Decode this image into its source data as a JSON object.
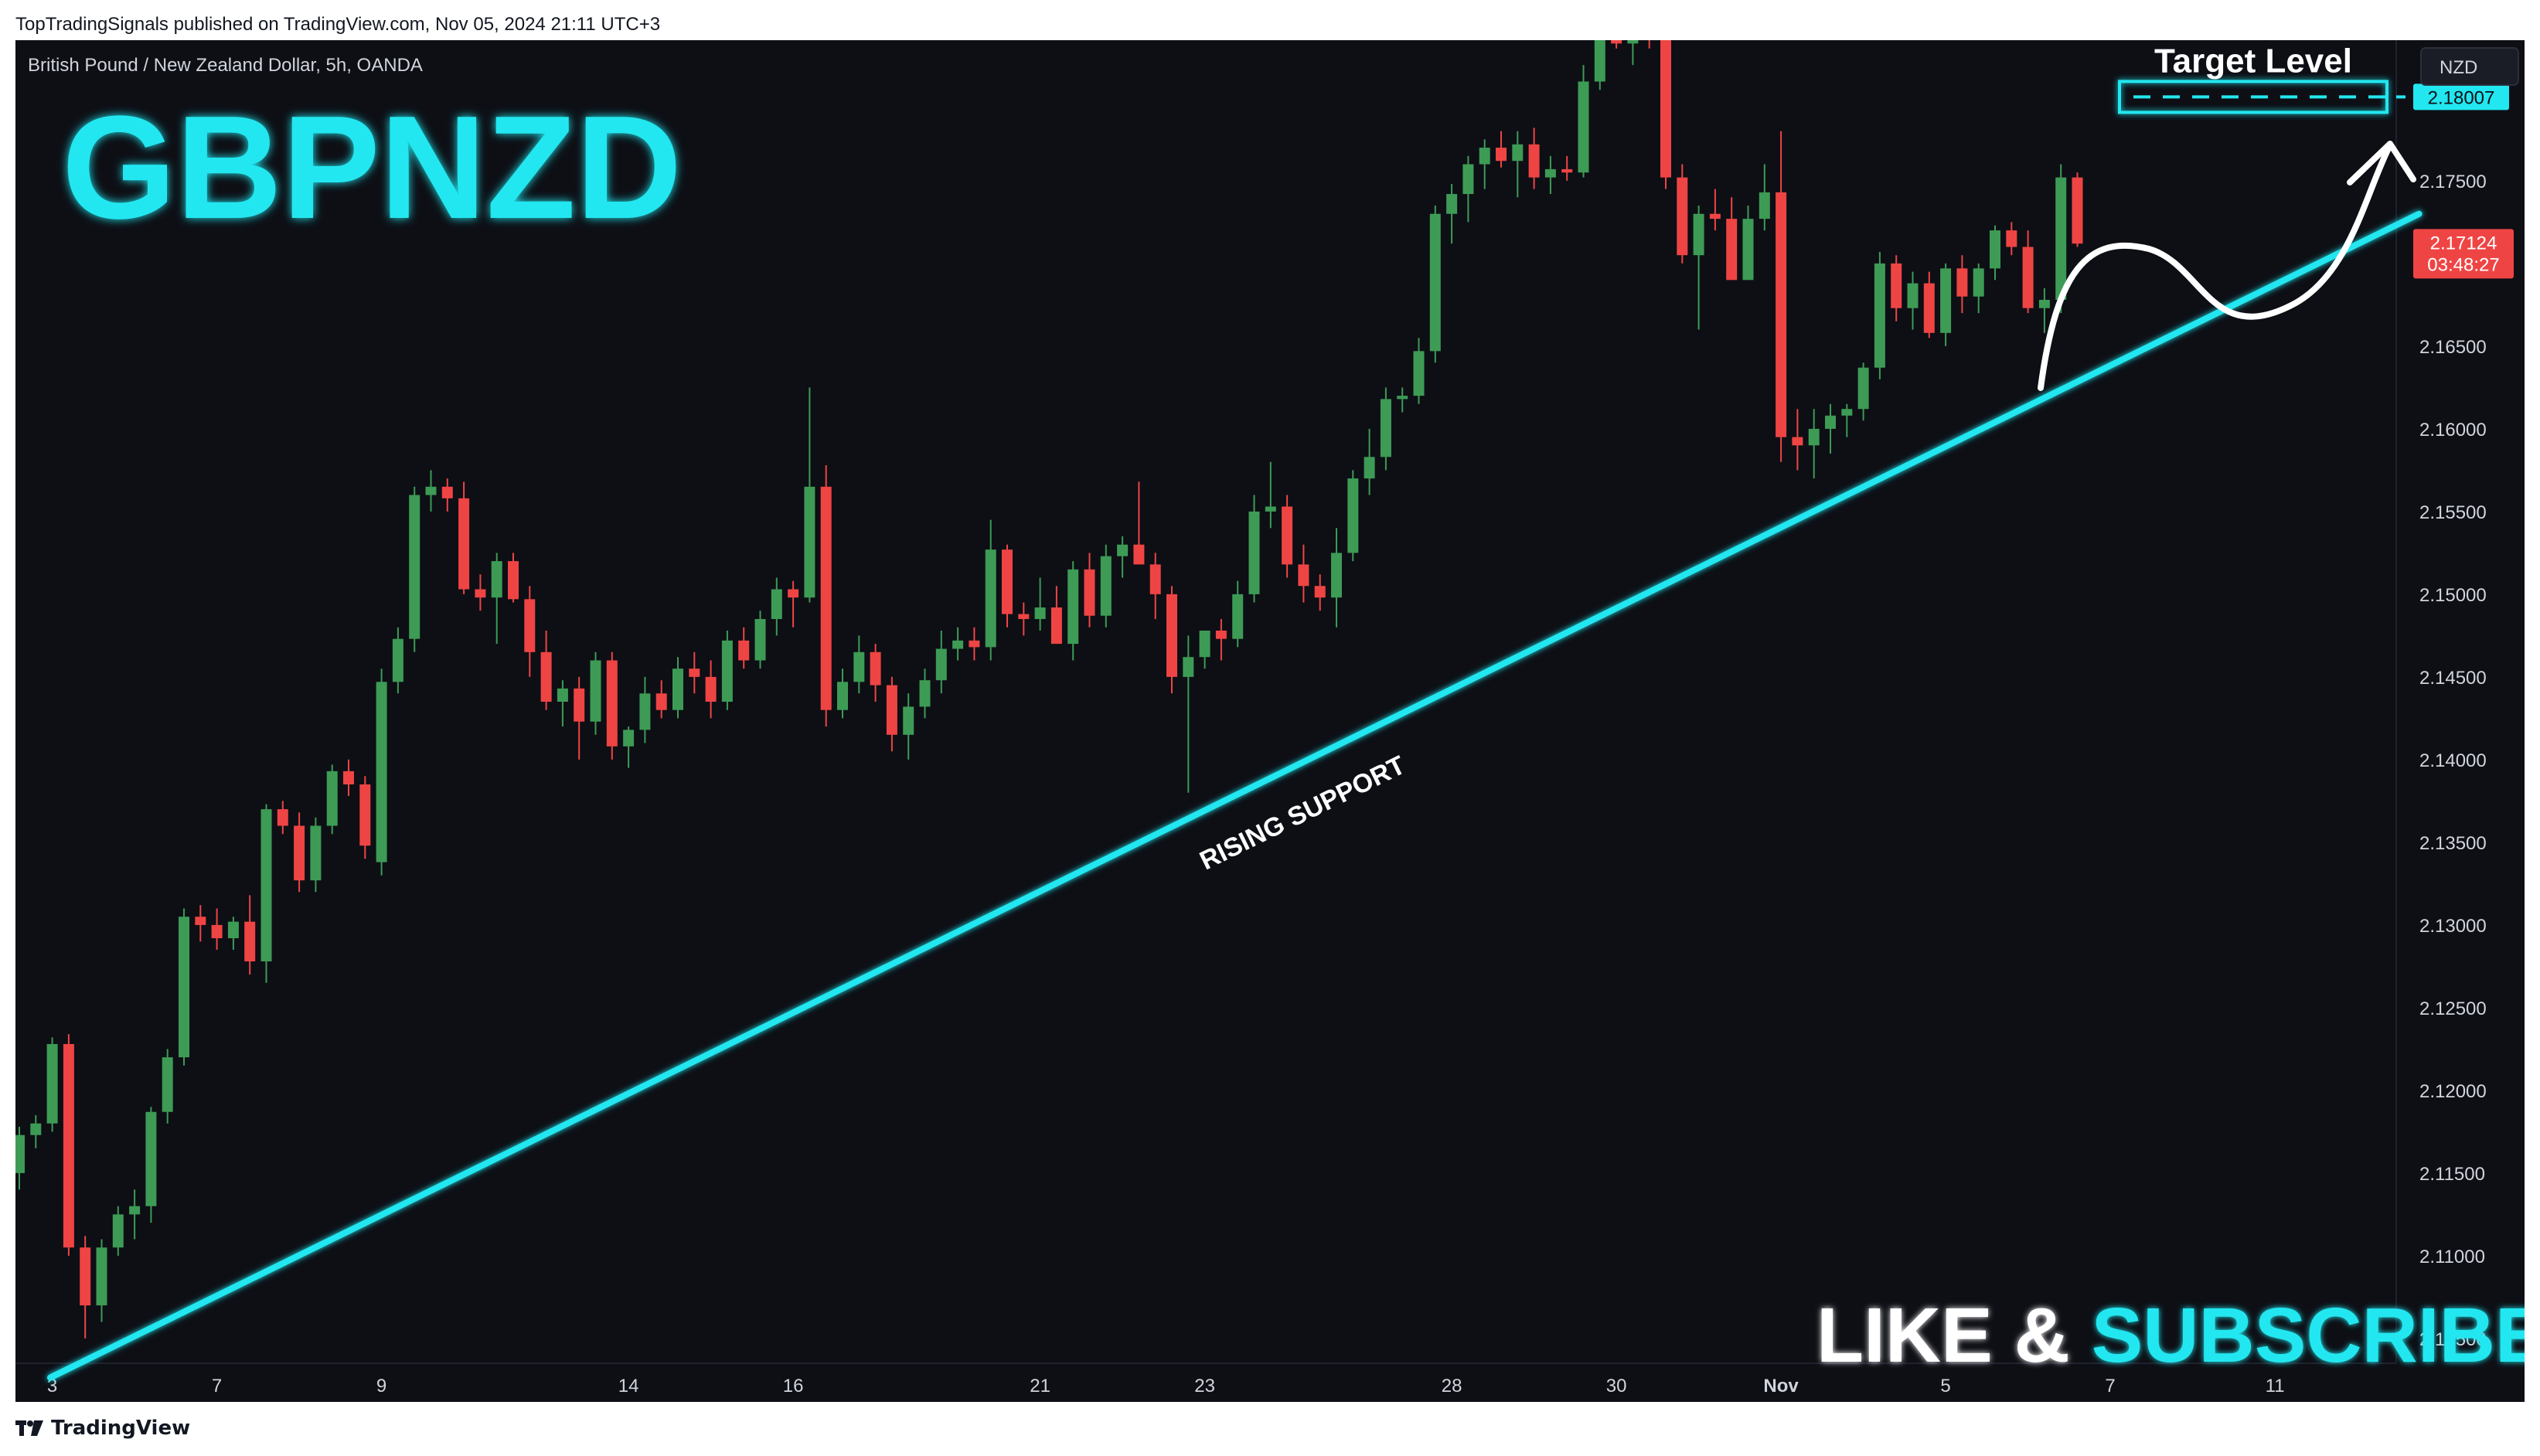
{
  "header": {
    "publisher_line": "TopTradingSignals published on TradingView.com, Nov 05, 2024 21:11 UTC+3"
  },
  "footer": {
    "logo_text": "TradingView"
  },
  "chart": {
    "instrument_line": "British Pound / New Zealand Dollar, 5h, OANDA",
    "currency_button": "NZD",
    "big_title": "GBPNZD",
    "support_label": "RISING SUPPORT",
    "target_label": "Target Level",
    "cta_part1": "LIKE & ",
    "cta_part2": "SUBSCRIBE",
    "last_price": "2.17124",
    "countdown": "03:48:27",
    "target_price": "2.18007"
  },
  "colors": {
    "background": "#0d0f15",
    "up": "#26a69a",
    "up_body": "#3d9b55",
    "down": "#ef4444",
    "accent": "#22e7f0",
    "axis_text": "#d1d4dc",
    "white": "#ffffff"
  },
  "chart_data": {
    "type": "candlestick",
    "symbol": "GBPNZD",
    "y_ticks": [
      "2.17500",
      "2.16500",
      "2.16000",
      "2.15500",
      "2.15000",
      "2.14500",
      "2.14000",
      "2.13500",
      "2.13000",
      "2.12500",
      "2.12000",
      "2.11500",
      "2.11000",
      "2.10500"
    ],
    "ylim": [
      2.1035,
      2.1835
    ],
    "x_labels": [
      {
        "label": "3",
        "bar": 2
      },
      {
        "label": "7",
        "bar": 12
      },
      {
        "label": "9",
        "bar": 22
      },
      {
        "label": "14",
        "bar": 37
      },
      {
        "label": "16",
        "bar": 47
      },
      {
        "label": "21",
        "bar": 62
      },
      {
        "label": "23",
        "bar": 72
      },
      {
        "label": "28",
        "bar": 87
      },
      {
        "label": "30",
        "bar": 97
      },
      {
        "label": "Nov",
        "bar": 107
      },
      {
        "label": "5",
        "bar": 117
      },
      {
        "label": "7",
        "bar": 127
      },
      {
        "label": "11",
        "bar": 137
      }
    ],
    "ohlc": [
      [
        2.115,
        2.1178,
        2.114,
        2.1173
      ],
      [
        2.1173,
        2.1185,
        2.1165,
        2.118
      ],
      [
        2.118,
        2.1232,
        2.1175,
        2.1228
      ],
      [
        2.1228,
        2.1234,
        2.11,
        2.1105
      ],
      [
        2.1105,
        2.1112,
        2.105,
        2.107
      ],
      [
        2.107,
        2.111,
        2.106,
        2.1105
      ],
      [
        2.1105,
        2.113,
        2.11,
        2.1125
      ],
      [
        2.1125,
        2.114,
        2.111,
        2.113
      ],
      [
        2.113,
        2.119,
        2.112,
        2.1187
      ],
      [
        2.1187,
        2.1225,
        2.118,
        2.122
      ],
      [
        2.122,
        2.131,
        2.1215,
        2.1305
      ],
      [
        2.1305,
        2.1312,
        2.129,
        2.13
      ],
      [
        2.13,
        2.131,
        2.1285,
        2.1292
      ],
      [
        2.1292,
        2.1305,
        2.1285,
        2.1302
      ],
      [
        2.1302,
        2.1318,
        2.127,
        2.1278
      ],
      [
        2.1278,
        2.1373,
        2.1265,
        2.137
      ],
      [
        2.137,
        2.1375,
        2.1355,
        2.136
      ],
      [
        2.136,
        2.1368,
        2.132,
        2.1327
      ],
      [
        2.1327,
        2.1365,
        2.132,
        2.136
      ],
      [
        2.136,
        2.1397,
        2.1355,
        2.1393
      ],
      [
        2.1393,
        2.14,
        2.1378,
        2.1385
      ],
      [
        2.1385,
        2.139,
        2.134,
        2.1348
      ],
      [
        2.1338,
        2.1455,
        2.133,
        2.1447
      ],
      [
        2.1447,
        2.148,
        2.144,
        2.1473
      ],
      [
        2.1473,
        2.1565,
        2.1465,
        2.156
      ],
      [
        2.156,
        2.1575,
        2.155,
        2.1565
      ],
      [
        2.1565,
        2.157,
        2.155,
        2.1558
      ],
      [
        2.1558,
        2.1568,
        2.15,
        2.1503
      ],
      [
        2.1503,
        2.1512,
        2.149,
        2.1498
      ],
      [
        2.1498,
        2.1525,
        2.147,
        2.152
      ],
      [
        2.152,
        2.1525,
        2.1495,
        2.1497
      ],
      [
        2.1497,
        2.1505,
        2.145,
        2.1465
      ],
      [
        2.1465,
        2.1478,
        2.143,
        2.1435
      ],
      [
        2.1435,
        2.1448,
        2.142,
        2.1443
      ],
      [
        2.1443,
        2.145,
        2.14,
        2.1423
      ],
      [
        2.1423,
        2.1465,
        2.1415,
        2.146
      ],
      [
        2.146,
        2.1465,
        2.14,
        2.1408
      ],
      [
        2.1408,
        2.142,
        2.1395,
        2.1418
      ],
      [
        2.1418,
        2.145,
        2.141,
        2.144
      ],
      [
        2.144,
        2.1448,
        2.1425,
        2.143
      ],
      [
        2.143,
        2.1462,
        2.1425,
        2.1455
      ],
      [
        2.1455,
        2.1465,
        2.144,
        2.145
      ],
      [
        2.145,
        2.146,
        2.1425,
        2.1435
      ],
      [
        2.1435,
        2.1478,
        2.143,
        2.1472
      ],
      [
        2.1472,
        2.148,
        2.1455,
        2.146
      ],
      [
        2.146,
        2.149,
        2.1455,
        2.1485
      ],
      [
        2.1485,
        2.151,
        2.1475,
        2.1503
      ],
      [
        2.1503,
        2.1508,
        2.148,
        2.1498
      ],
      [
        2.1498,
        2.1625,
        2.1495,
        2.1565
      ],
      [
        2.1565,
        2.1578,
        2.142,
        2.143
      ],
      [
        2.143,
        2.1455,
        2.1425,
        2.1447
      ],
      [
        2.1447,
        2.1475,
        2.144,
        2.1465
      ],
      [
        2.1465,
        2.147,
        2.1435,
        2.1445
      ],
      [
        2.1445,
        2.145,
        2.1405,
        2.1415
      ],
      [
        2.1415,
        2.144,
        2.14,
        2.1432
      ],
      [
        2.1432,
        2.1455,
        2.1425,
        2.1448
      ],
      [
        2.1448,
        2.1478,
        2.144,
        2.1467
      ],
      [
        2.1467,
        2.148,
        2.146,
        2.1472
      ],
      [
        2.1472,
        2.148,
        2.146,
        2.1468
      ],
      [
        2.1468,
        2.1545,
        2.146,
        2.1527
      ],
      [
        2.1527,
        2.153,
        2.148,
        2.1488
      ],
      [
        2.1488,
        2.1495,
        2.1475,
        2.1485
      ],
      [
        2.1485,
        2.151,
        2.1478,
        2.1492
      ],
      [
        2.1492,
        2.1505,
        2.147,
        2.147
      ],
      [
        2.147,
        2.152,
        2.146,
        2.1515
      ],
      [
        2.1515,
        2.1525,
        2.148,
        2.1487
      ],
      [
        2.1487,
        2.153,
        2.148,
        2.1523
      ],
      [
        2.1523,
        2.1535,
        2.151,
        2.153
      ],
      [
        2.153,
        2.1568,
        2.152,
        2.1518
      ],
      [
        2.1518,
        2.1525,
        2.1485,
        2.15
      ],
      [
        2.15,
        2.1505,
        2.144,
        2.145
      ],
      [
        2.145,
        2.1475,
        2.138,
        2.1462
      ],
      [
        2.1462,
        2.1478,
        2.1455,
        2.1478
      ],
      [
        2.1478,
        2.1485,
        2.146,
        2.1473
      ],
      [
        2.1473,
        2.1508,
        2.1468,
        2.15
      ],
      [
        2.15,
        2.156,
        2.1495,
        2.155
      ],
      [
        2.155,
        2.158,
        2.154,
        2.1553
      ],
      [
        2.1553,
        2.156,
        2.151,
        2.1518
      ],
      [
        2.1518,
        2.153,
        2.1495,
        2.1505
      ],
      [
        2.1505,
        2.1512,
        2.149,
        2.1498
      ],
      [
        2.1498,
        2.154,
        2.148,
        2.1525
      ],
      [
        2.1525,
        2.1575,
        2.152,
        2.157
      ],
      [
        2.157,
        2.16,
        2.156,
        2.1583
      ],
      [
        2.1583,
        2.1625,
        2.1575,
        2.1618
      ],
      [
        2.1618,
        2.1625,
        2.161,
        2.162
      ],
      [
        2.162,
        2.1655,
        2.1615,
        2.1647
      ],
      [
        2.1647,
        2.1735,
        2.164,
        2.173
      ],
      [
        2.173,
        2.1748,
        2.1712,
        2.1742
      ],
      [
        2.1742,
        2.1765,
        2.1725,
        2.176
      ],
      [
        2.176,
        2.1775,
        2.1745,
        2.177
      ],
      [
        2.177,
        2.178,
        2.1758,
        2.1762
      ],
      [
        2.1762,
        2.178,
        2.174,
        2.1772
      ],
      [
        2.1772,
        2.1782,
        2.1745,
        2.1752
      ],
      [
        2.1752,
        2.1765,
        2.1742,
        2.1757
      ],
      [
        2.1757,
        2.1765,
        2.175,
        2.1755
      ],
      [
        2.1755,
        2.182,
        2.1752,
        2.181
      ],
      [
        2.181,
        2.186,
        2.1805,
        2.1855
      ],
      [
        2.1855,
        2.1862,
        2.183,
        2.1833
      ],
      [
        2.1833,
        2.185,
        2.182,
        2.184
      ],
      [
        2.184,
        2.187,
        2.183,
        2.1838
      ],
      [
        2.1838,
        2.1845,
        2.1745,
        2.1752
      ],
      [
        2.1752,
        2.176,
        2.17,
        2.1705
      ],
      [
        2.1705,
        2.1735,
        2.166,
        2.173
      ],
      [
        2.173,
        2.1745,
        2.172,
        2.1727
      ],
      [
        2.1727,
        2.174,
        2.169,
        2.169
      ],
      [
        2.169,
        2.1735,
        2.169,
        2.1727
      ],
      [
        2.1727,
        2.176,
        2.172,
        2.1743
      ],
      [
        2.1743,
        2.178,
        2.158,
        2.1595
      ],
      [
        2.1595,
        2.1612,
        2.1575,
        2.159
      ],
      [
        2.159,
        2.1612,
        2.157,
        2.16
      ],
      [
        2.16,
        2.1615,
        2.1585,
        2.1608
      ],
      [
        2.1608,
        2.1615,
        2.1595,
        2.1612
      ],
      [
        2.1612,
        2.164,
        2.1605,
        2.1637
      ],
      [
        2.1637,
        2.1707,
        2.163,
        2.17
      ],
      [
        2.17,
        2.1705,
        2.1665,
        2.1673
      ],
      [
        2.1673,
        2.1695,
        2.166,
        2.1688
      ],
      [
        2.1688,
        2.1695,
        2.1655,
        2.1658
      ],
      [
        2.1658,
        2.17,
        2.165,
        2.1697
      ],
      [
        2.1697,
        2.1705,
        2.167,
        2.168
      ],
      [
        2.168,
        2.17,
        2.167,
        2.1697
      ],
      [
        2.1697,
        2.1723,
        2.169,
        2.172
      ],
      [
        2.172,
        2.1725,
        2.1705,
        2.171
      ],
      [
        2.171,
        2.172,
        2.167,
        2.1673
      ],
      [
        2.1673,
        2.1685,
        2.1658,
        2.1678
      ],
      [
        2.1678,
        2.176,
        2.167,
        2.1752
      ],
      [
        2.1752,
        2.1755,
        2.171,
        2.1712
      ]
    ],
    "overlays": [
      {
        "type": "trendline",
        "label": "RISING SUPPORT",
        "from": [
          0,
          2.1045
        ],
        "to": [
          142,
          2.173
        ],
        "color": "#22e7f0"
      },
      {
        "type": "target_box",
        "label": "Target Level",
        "price": 2.18007,
        "color": "#22e7f0"
      },
      {
        "type": "projection_arrow",
        "direction": "up",
        "color": "#ffffff"
      }
    ],
    "last_price": 2.17124,
    "grid": false
  }
}
